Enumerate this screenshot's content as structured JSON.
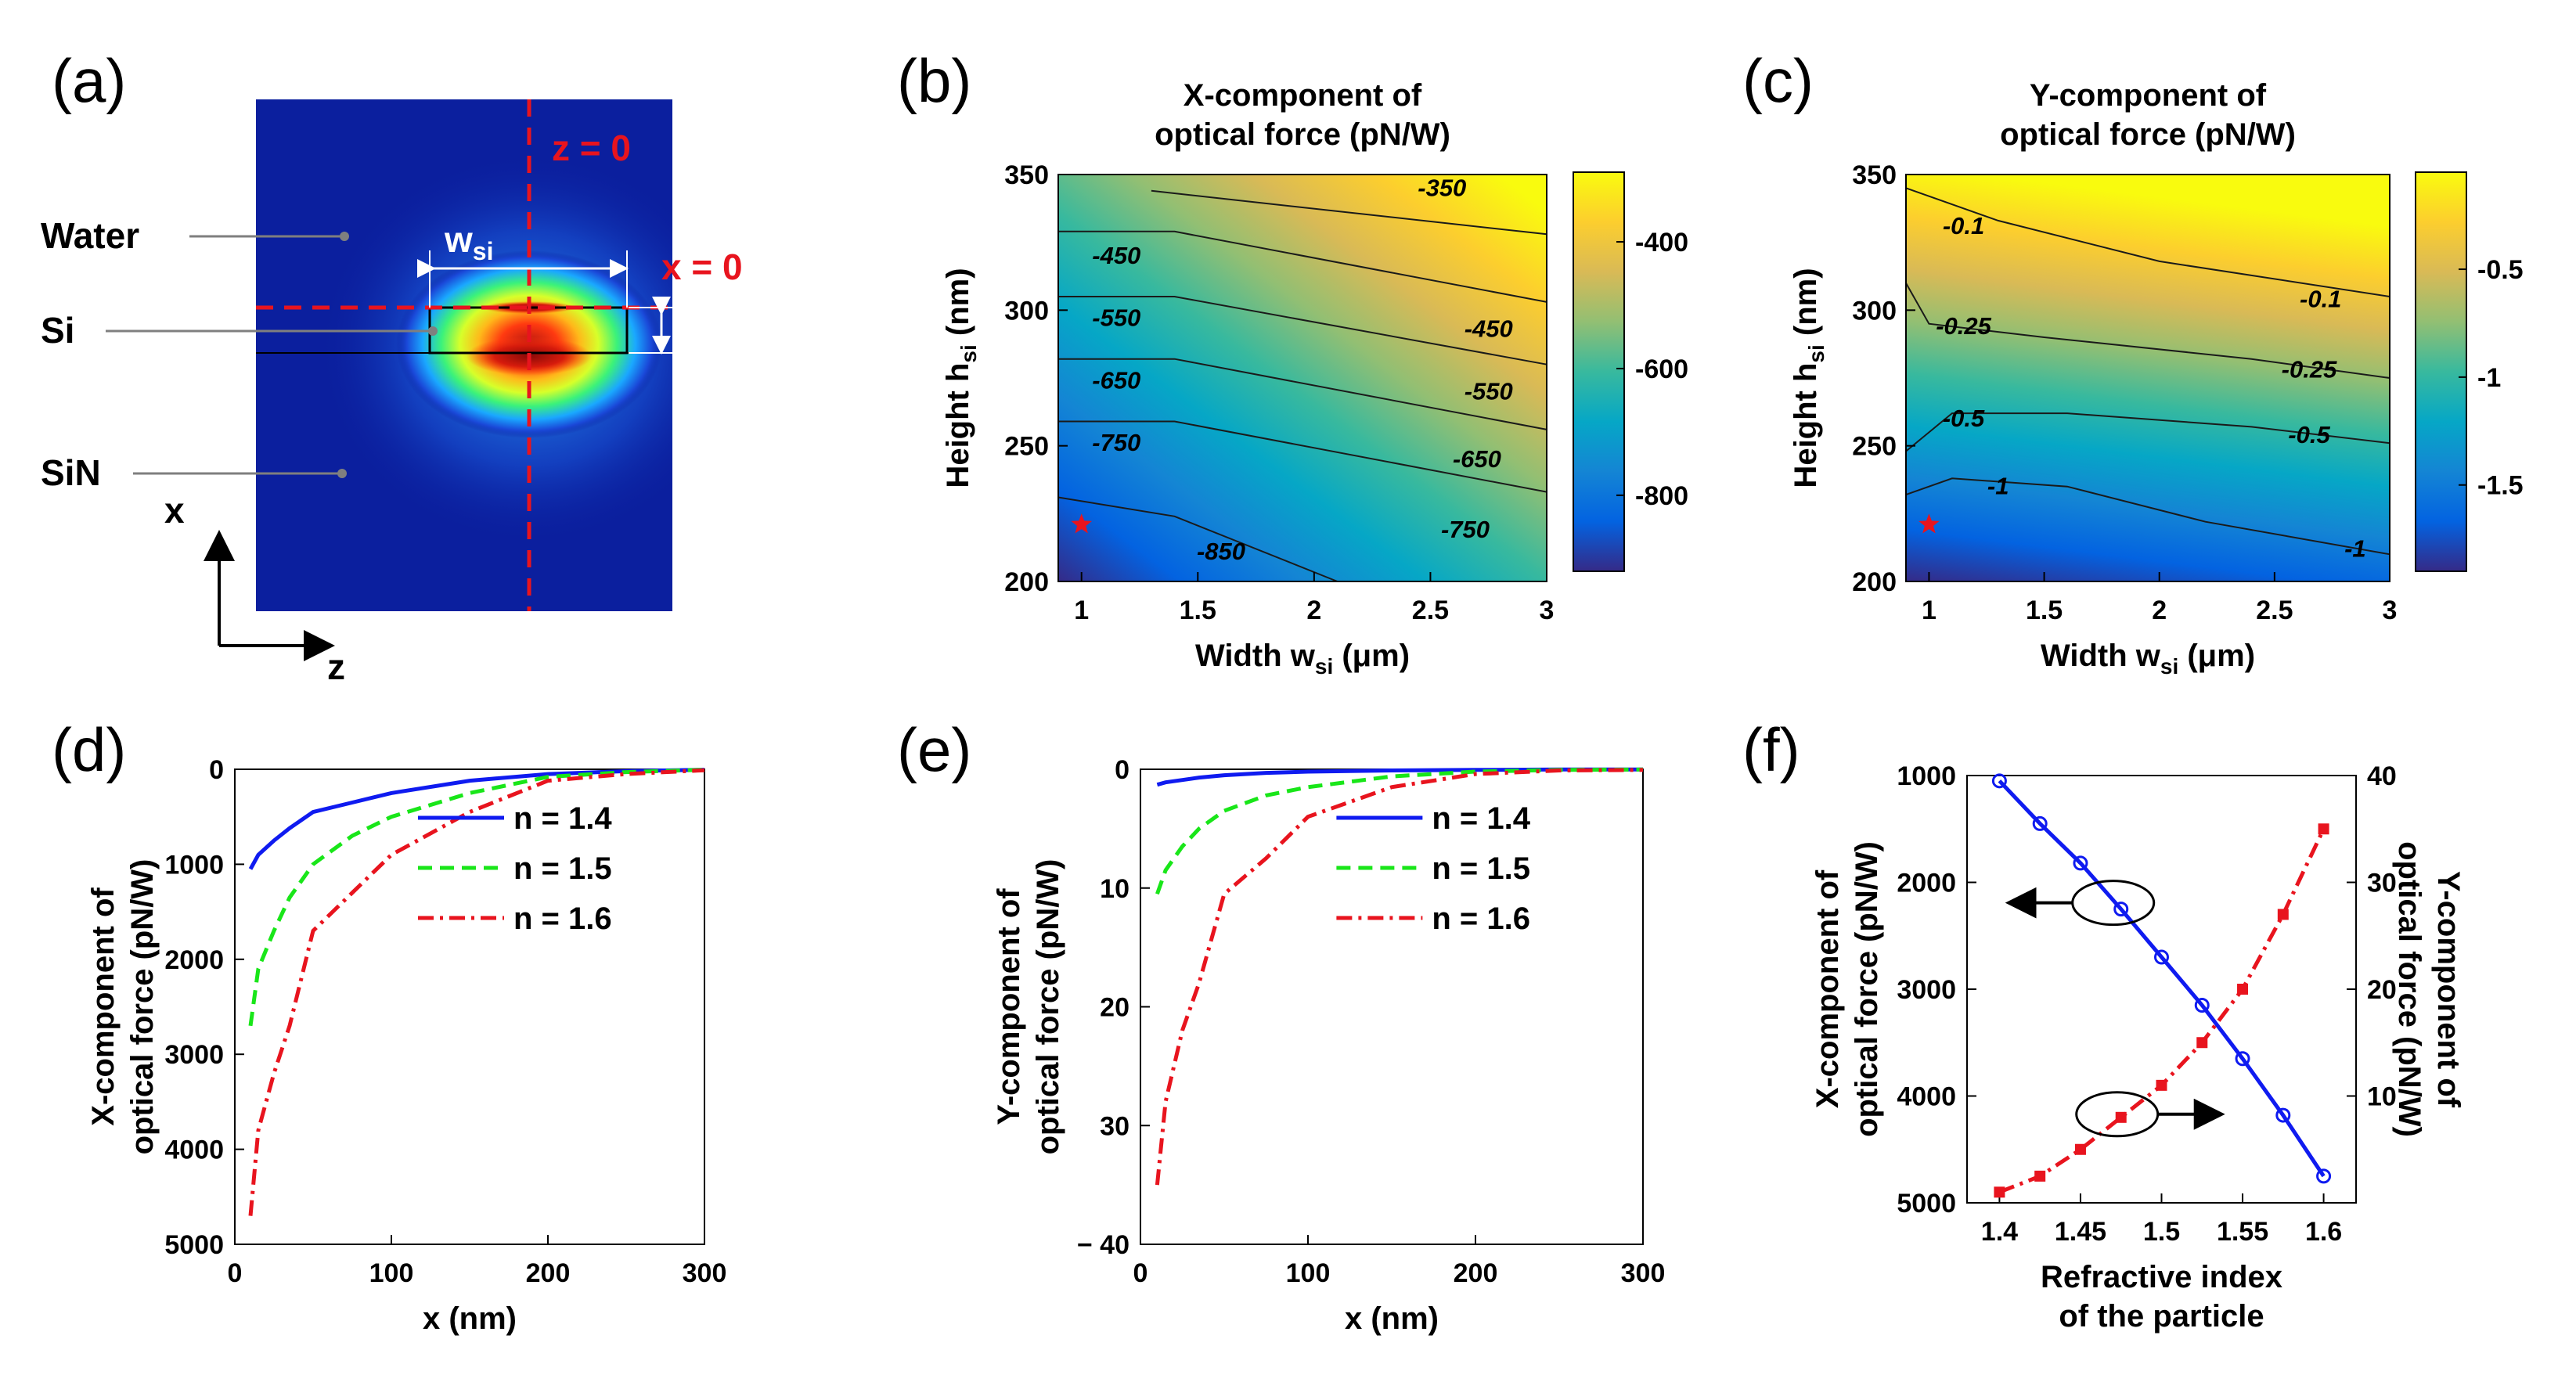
{
  "panels": {
    "a": {
      "label": "(a)"
    },
    "b": {
      "label": "(b)"
    },
    "c": {
      "label": "(c)"
    },
    "d": {
      "label": "(d)"
    },
    "e": {
      "label": "(e)"
    },
    "f": {
      "label": "(f)"
    }
  },
  "diagram": {
    "labels": {
      "water": "Water",
      "si": "Si",
      "sin": "SiN",
      "z0": "z = 0",
      "x0": "x = 0",
      "wsi_main": "w",
      "wsi_sub": "si",
      "hsi_main": "h",
      "hsi_sub": "si",
      "axis_x": "x",
      "axis_z": "z"
    },
    "colors": {
      "background": "#0b1f9e",
      "annotation_red": "#e8141e",
      "leader_gray": "#7f7f7f"
    }
  },
  "chart_data": [
    {
      "id": "b",
      "type": "heatmap",
      "title": [
        "X-component of",
        "optical force (pN/W)"
      ],
      "xlabel": {
        "main": "Width w",
        "sub": "si",
        "unit": " (μm)"
      },
      "ylabel": {
        "main": "Height h",
        "sub": "si",
        "unit": " (nm)"
      },
      "xlim": [
        0.9,
        3
      ],
      "ylim": [
        200,
        350
      ],
      "xticks": [
        1,
        1.5,
        2,
        2.5,
        3
      ],
      "yticks": [
        200,
        250,
        300,
        350
      ],
      "xtick_labels": [
        "1",
        "1.5",
        "2",
        "2.5",
        "3"
      ],
      "ytick_labels": [
        "200",
        "250",
        "300",
        "350"
      ],
      "clim": [
        -920,
        -290
      ],
      "colorbar_ticks": [
        -400,
        -600,
        -800
      ],
      "colorbar_labels": [
        "-400",
        "-600",
        "-800"
      ],
      "colormap": "parula",
      "contour_labels": [
        {
          "text": "-350",
          "x": 2.55,
          "y": 345
        },
        {
          "text": "-450",
          "x": 1.15,
          "y": 320
        },
        {
          "text": "-450",
          "x": 2.75,
          "y": 293
        },
        {
          "text": "-550",
          "x": 1.15,
          "y": 297
        },
        {
          "text": "-550",
          "x": 2.75,
          "y": 270
        },
        {
          "text": "-650",
          "x": 1.15,
          "y": 274
        },
        {
          "text": "-650",
          "x": 2.7,
          "y": 245
        },
        {
          "text": "-750",
          "x": 1.15,
          "y": 251
        },
        {
          "text": "-750",
          "x": 2.65,
          "y": 219
        },
        {
          "text": "-850",
          "x": 1.6,
          "y": 211
        }
      ],
      "contour_lines": [
        [
          [
            0.9,
            350
          ],
          [
            3,
            350
          ]
        ],
        [
          [
            1.3,
            344
          ],
          [
            3,
            328
          ]
        ],
        [
          [
            0.9,
            329
          ],
          [
            1.4,
            329
          ],
          [
            3,
            303
          ]
        ],
        [
          [
            0.9,
            305
          ],
          [
            1.4,
            305
          ],
          [
            3,
            280
          ]
        ],
        [
          [
            0.9,
            282
          ],
          [
            1.4,
            282
          ],
          [
            3,
            256
          ]
        ],
        [
          [
            0.9,
            259
          ],
          [
            1.4,
            259
          ],
          [
            3,
            233
          ]
        ],
        [
          [
            0.9,
            231
          ],
          [
            1.4,
            224
          ],
          [
            2.1,
            200
          ]
        ]
      ],
      "marker": {
        "x": 1.0,
        "y": 221,
        "shape": "star",
        "color": "#e8141e"
      }
    },
    {
      "id": "c",
      "type": "heatmap",
      "title": [
        "Y-component of",
        "optical force (pN/W)"
      ],
      "xlabel": {
        "main": "Width w",
        "sub": "si",
        "unit": " (μm)"
      },
      "ylabel": {
        "main": "Height h",
        "sub": "si",
        "unit": " (nm)"
      },
      "xlim": [
        0.9,
        3
      ],
      "ylim": [
        200,
        350
      ],
      "xticks": [
        1,
        1.5,
        2,
        2.5,
        3
      ],
      "yticks": [
        200,
        250,
        300,
        350
      ],
      "xtick_labels": [
        "1",
        "1.5",
        "2",
        "2.5",
        "3"
      ],
      "ytick_labels": [
        "200",
        "250",
        "300",
        "350"
      ],
      "clim": [
        -1.9,
        -0.05
      ],
      "colorbar_ticks": [
        -0.5,
        -1,
        -1.5
      ],
      "colorbar_labels": [
        "-0.5",
        "-1",
        "-1.5"
      ],
      "colormap": "parula",
      "contour_labels": [
        {
          "text": "-0.1",
          "x": 1.15,
          "y": 331
        },
        {
          "text": "-0.1",
          "x": 2.7,
          "y": 304
        },
        {
          "text": "-0.25",
          "x": 1.15,
          "y": 294
        },
        {
          "text": "-0.25",
          "x": 2.65,
          "y": 278
        },
        {
          "text": "-0.5",
          "x": 1.15,
          "y": 260
        },
        {
          "text": "-0.5",
          "x": 2.65,
          "y": 254
        },
        {
          "text": "-1",
          "x": 1.3,
          "y": 235
        },
        {
          "text": "-1",
          "x": 2.85,
          "y": 212
        }
      ],
      "contour_lines": [
        [
          [
            0.9,
            345
          ],
          [
            1.3,
            333
          ],
          [
            2.0,
            318
          ],
          [
            3,
            305
          ]
        ],
        [
          [
            0.9,
            310
          ],
          [
            1.0,
            295
          ],
          [
            1.5,
            290
          ],
          [
            2.4,
            282
          ],
          [
            3,
            275
          ]
        ],
        [
          [
            0.9,
            248
          ],
          [
            1.1,
            262
          ],
          [
            1.6,
            262
          ],
          [
            2.4,
            257
          ],
          [
            3,
            251
          ]
        ],
        [
          [
            0.9,
            232
          ],
          [
            1.1,
            238
          ],
          [
            1.6,
            235
          ],
          [
            2.2,
            222
          ],
          [
            3,
            210
          ]
        ]
      ],
      "marker": {
        "x": 1.0,
        "y": 221,
        "shape": "star",
        "color": "#e8141e"
      }
    },
    {
      "id": "d",
      "type": "line",
      "ylabel": [
        "X-component of",
        "optical force (pN/W)"
      ],
      "xlabel": "x (nm)",
      "xlim": [
        0,
        300
      ],
      "ylim": [
        -5000,
        0
      ],
      "xticks": [
        0,
        100,
        200,
        300
      ],
      "yticks": [
        0,
        -1000,
        -2000,
        -3000,
        -4000,
        -5000
      ],
      "xtick_labels": [
        "0",
        "100",
        "200",
        "300"
      ],
      "ytick_labels": [
        "0",
        "1000",
        "2000",
        "3000",
        "4000",
        "5000"
      ],
      "legend": "upper-right",
      "series": [
        {
          "name": "n = 1.4",
          "color": "#0f1bf0",
          "dash": "solid",
          "x": [
            10,
            15,
            25,
            35,
            50,
            75,
            100,
            150,
            200,
            250,
            300
          ],
          "y": [
            -1050,
            -900,
            -750,
            -620,
            -450,
            -350,
            -250,
            -120,
            -50,
            -20,
            -5
          ]
        },
        {
          "name": "n = 1.5",
          "color": "#19e619",
          "dash": "dashed",
          "x": [
            10,
            15,
            25,
            35,
            50,
            75,
            100,
            150,
            200,
            250,
            300
          ],
          "y": [
            -2700,
            -2100,
            -1700,
            -1350,
            -1000,
            -700,
            -500,
            -250,
            -80,
            -30,
            -5
          ]
        },
        {
          "name": "n = 1.6",
          "color": "#e8141e",
          "dash": "dashdot",
          "x": [
            10,
            15,
            25,
            35,
            50,
            75,
            100,
            150,
            200,
            250,
            300
          ],
          "y": [
            -4700,
            -3800,
            -3200,
            -2700,
            -1700,
            -1300,
            -900,
            -450,
            -120,
            -50,
            -10
          ]
        }
      ]
    },
    {
      "id": "e",
      "type": "line",
      "ylabel": [
        "Y-component of",
        "optical force (pN/W)"
      ],
      "xlabel": "x (nm)",
      "xlim": [
        0,
        300
      ],
      "ylim": [
        -40,
        0
      ],
      "xticks": [
        0,
        100,
        200,
        300
      ],
      "yticks": [
        0,
        -10,
        -20,
        -30,
        -40
      ],
      "xtick_labels": [
        "0",
        "100",
        "200",
        "300"
      ],
      "ytick_labels": [
        "0",
        "10",
        "20",
        "30",
        "− 40"
      ],
      "legend": "upper-right",
      "series": [
        {
          "name": "n = 1.4",
          "color": "#0f1bf0",
          "dash": "solid",
          "x": [
            10,
            15,
            25,
            35,
            50,
            75,
            100,
            150,
            200,
            250,
            300
          ],
          "y": [
            -1.3,
            -1.1,
            -0.9,
            -0.7,
            -0.5,
            -0.3,
            -0.2,
            -0.1,
            -0.05,
            -0.02,
            -0.01
          ]
        },
        {
          "name": "n = 1.5",
          "color": "#19e619",
          "dash": "dashed",
          "x": [
            10,
            15,
            25,
            35,
            50,
            75,
            100,
            150,
            200,
            250,
            300
          ],
          "y": [
            -10.5,
            -8.5,
            -6.5,
            -5,
            -3.5,
            -2.2,
            -1.5,
            -0.6,
            -0.2,
            -0.05,
            -0.02
          ]
        },
        {
          "name": "n = 1.6",
          "color": "#e8141e",
          "dash": "dashdot",
          "x": [
            10,
            15,
            25,
            35,
            50,
            75,
            100,
            150,
            200,
            250,
            300
          ],
          "y": [
            -35,
            -28,
            -22,
            -18,
            -10.5,
            -7.5,
            -4,
            -1.5,
            -0.4,
            -0.1,
            -0.05
          ]
        }
      ]
    },
    {
      "id": "f",
      "type": "line",
      "ylabel_left": [
        "X-component of",
        "optical force (pN/W)"
      ],
      "ylabel_right": [
        "Y-component of",
        "optical force (pN/W)"
      ],
      "xlabel": [
        "Refractive index",
        "of the particle"
      ],
      "xlim": [
        1.38,
        1.62
      ],
      "ylim_left": [
        -5000,
        -1000
      ],
      "ylim_right": [
        0,
        40
      ],
      "xticks": [
        1.4,
        1.45,
        1.5,
        1.55,
        1.6
      ],
      "xtick_labels": [
        "1.4",
        "1.45",
        "1.5",
        "1.55",
        "1.6"
      ],
      "yticks_left": [
        -1000,
        -2000,
        -3000,
        -4000,
        -5000
      ],
      "ytick_labels_left": [
        "1000",
        "2000",
        "3000",
        "4000",
        "5000"
      ],
      "yticks_right": [
        10,
        20,
        30,
        40
      ],
      "ytick_labels_right": [
        "10",
        "20",
        "30",
        "40"
      ],
      "series": [
        {
          "name": "",
          "axis": "left",
          "color": "#0f1bf0",
          "dash": "solid",
          "marker": "circle",
          "x": [
            1.4,
            1.425,
            1.45,
            1.475,
            1.5,
            1.525,
            1.55,
            1.575,
            1.6
          ],
          "y": [
            -1050,
            -1450,
            -1820,
            -2250,
            -2700,
            -3150,
            -3650,
            -4180,
            -4750
          ]
        },
        {
          "name": "",
          "axis": "right",
          "color": "#e8141e",
          "dash": "dashdot",
          "marker": "square",
          "x": [
            1.4,
            1.425,
            1.45,
            1.475,
            1.5,
            1.525,
            1.55,
            1.575,
            1.6
          ],
          "y": [
            1.0,
            2.5,
            5.0,
            8.0,
            11.0,
            15.0,
            20.0,
            27.0,
            35.0
          ]
        }
      ]
    }
  ]
}
